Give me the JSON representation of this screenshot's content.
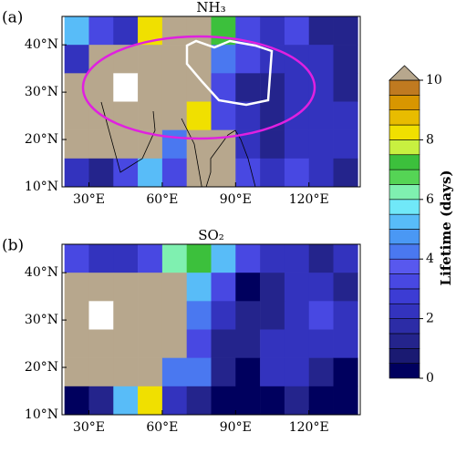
{
  "chart_data": [
    {
      "type": "heatmap",
      "panel_label": "(a)",
      "title": "NH₃",
      "xlim": [
        19,
        141
      ],
      "ylim": [
        10,
        46
      ],
      "xticks": [
        {
          "value": 30,
          "label": "30°E"
        },
        {
          "value": 60,
          "label": "60°E"
        },
        {
          "value": 90,
          "label": "90°E"
        },
        {
          "value": 120,
          "label": "120°E"
        }
      ],
      "yticks": [
        {
          "value": 10,
          "label": "10°N"
        },
        {
          "value": 20,
          "label": "20°N"
        },
        {
          "value": 30,
          "label": "30°N"
        },
        {
          "value": 40,
          "label": "40°N"
        }
      ],
      "lon_edges": [
        20,
        30,
        40,
        50,
        60,
        70,
        80,
        90,
        100,
        110,
        120,
        130,
        140
      ],
      "lat_edges": [
        46,
        40,
        34,
        28,
        22,
        16,
        10
      ],
      "values": [
        [
          5,
          3,
          2,
          8,
          12,
          12,
          7,
          3,
          2,
          3,
          1,
          1
        ],
        [
          2,
          12,
          12,
          12,
          12,
          12,
          4,
          3,
          2,
          2,
          2,
          1
        ],
        [
          12,
          12,
          null,
          12,
          12,
          12,
          3,
          1,
          1,
          2,
          2,
          1
        ],
        [
          12,
          12,
          12,
          12,
          12,
          8,
          3,
          2,
          1,
          2,
          2,
          2
        ],
        [
          12,
          12,
          12,
          12,
          4,
          12,
          12,
          2,
          1,
          2,
          2,
          2
        ],
        [
          2,
          1,
          3,
          5,
          3,
          12,
          12,
          3,
          2,
          3,
          2,
          1
        ]
      ]
    },
    {
      "type": "heatmap",
      "panel_label": "(b)",
      "title": "SO₂",
      "xlim": [
        19,
        141
      ],
      "ylim": [
        10,
        46
      ],
      "xticks": [
        {
          "value": 30,
          "label": "30°E"
        },
        {
          "value": 60,
          "label": "60°E"
        },
        {
          "value": 90,
          "label": "90°E"
        },
        {
          "value": 120,
          "label": "120°E"
        }
      ],
      "yticks": [
        {
          "value": 10,
          "label": "10°N"
        },
        {
          "value": 20,
          "label": "20°N"
        },
        {
          "value": 30,
          "label": "30°N"
        },
        {
          "value": 40,
          "label": "40°N"
        }
      ],
      "lon_edges": [
        20,
        30,
        40,
        50,
        60,
        70,
        80,
        90,
        100,
        110,
        120,
        130,
        140
      ],
      "lat_edges": [
        46,
        40,
        34,
        28,
        22,
        16,
        10
      ],
      "values": [
        [
          3,
          2,
          2,
          3,
          6,
          7,
          5,
          3,
          2,
          2,
          1,
          2
        ],
        [
          12,
          12,
          12,
          12,
          12,
          5,
          3,
          0,
          1,
          2,
          2,
          1
        ],
        [
          12,
          null,
          12,
          12,
          12,
          4,
          2,
          1,
          1,
          2,
          3,
          2
        ],
        [
          12,
          12,
          12,
          12,
          12,
          3,
          1,
          1,
          2,
          2,
          2,
          2
        ],
        [
          12,
          12,
          12,
          12,
          4,
          4,
          1,
          0,
          2,
          2,
          1,
          0
        ],
        [
          0,
          1,
          5,
          8,
          2,
          1,
          0,
          0,
          0,
          1,
          0,
          0
        ]
      ]
    },
    {
      "type": "colorbar",
      "label": "Lifetime (days)",
      "ylim": [
        0,
        10
      ],
      "yticks": [
        0,
        2,
        4,
        6,
        8,
        10
      ],
      "boundaries": [
        0,
        0.5,
        1,
        1.5,
        2,
        2.5,
        3,
        3.5,
        4,
        4.5,
        5,
        5.5,
        6,
        6.5,
        7,
        7.5,
        8,
        8.5,
        9,
        9.5,
        10
      ],
      "colors": [
        "#00005e",
        "#1a1a72",
        "#24248c",
        "#2c2ca6",
        "#3333be",
        "#3c3cd4",
        "#4848e2",
        "#5858ee",
        "#4a78f0",
        "#4a98f4",
        "#58bcf8",
        "#70e8f8",
        "#7ff0b0",
        "#55d455",
        "#3cc03c",
        "#c8f040",
        "#f0e000",
        "#e8bc00",
        "#d89600",
        "#c07a20"
      ],
      "over_color": "#b7a78d"
    }
  ]
}
